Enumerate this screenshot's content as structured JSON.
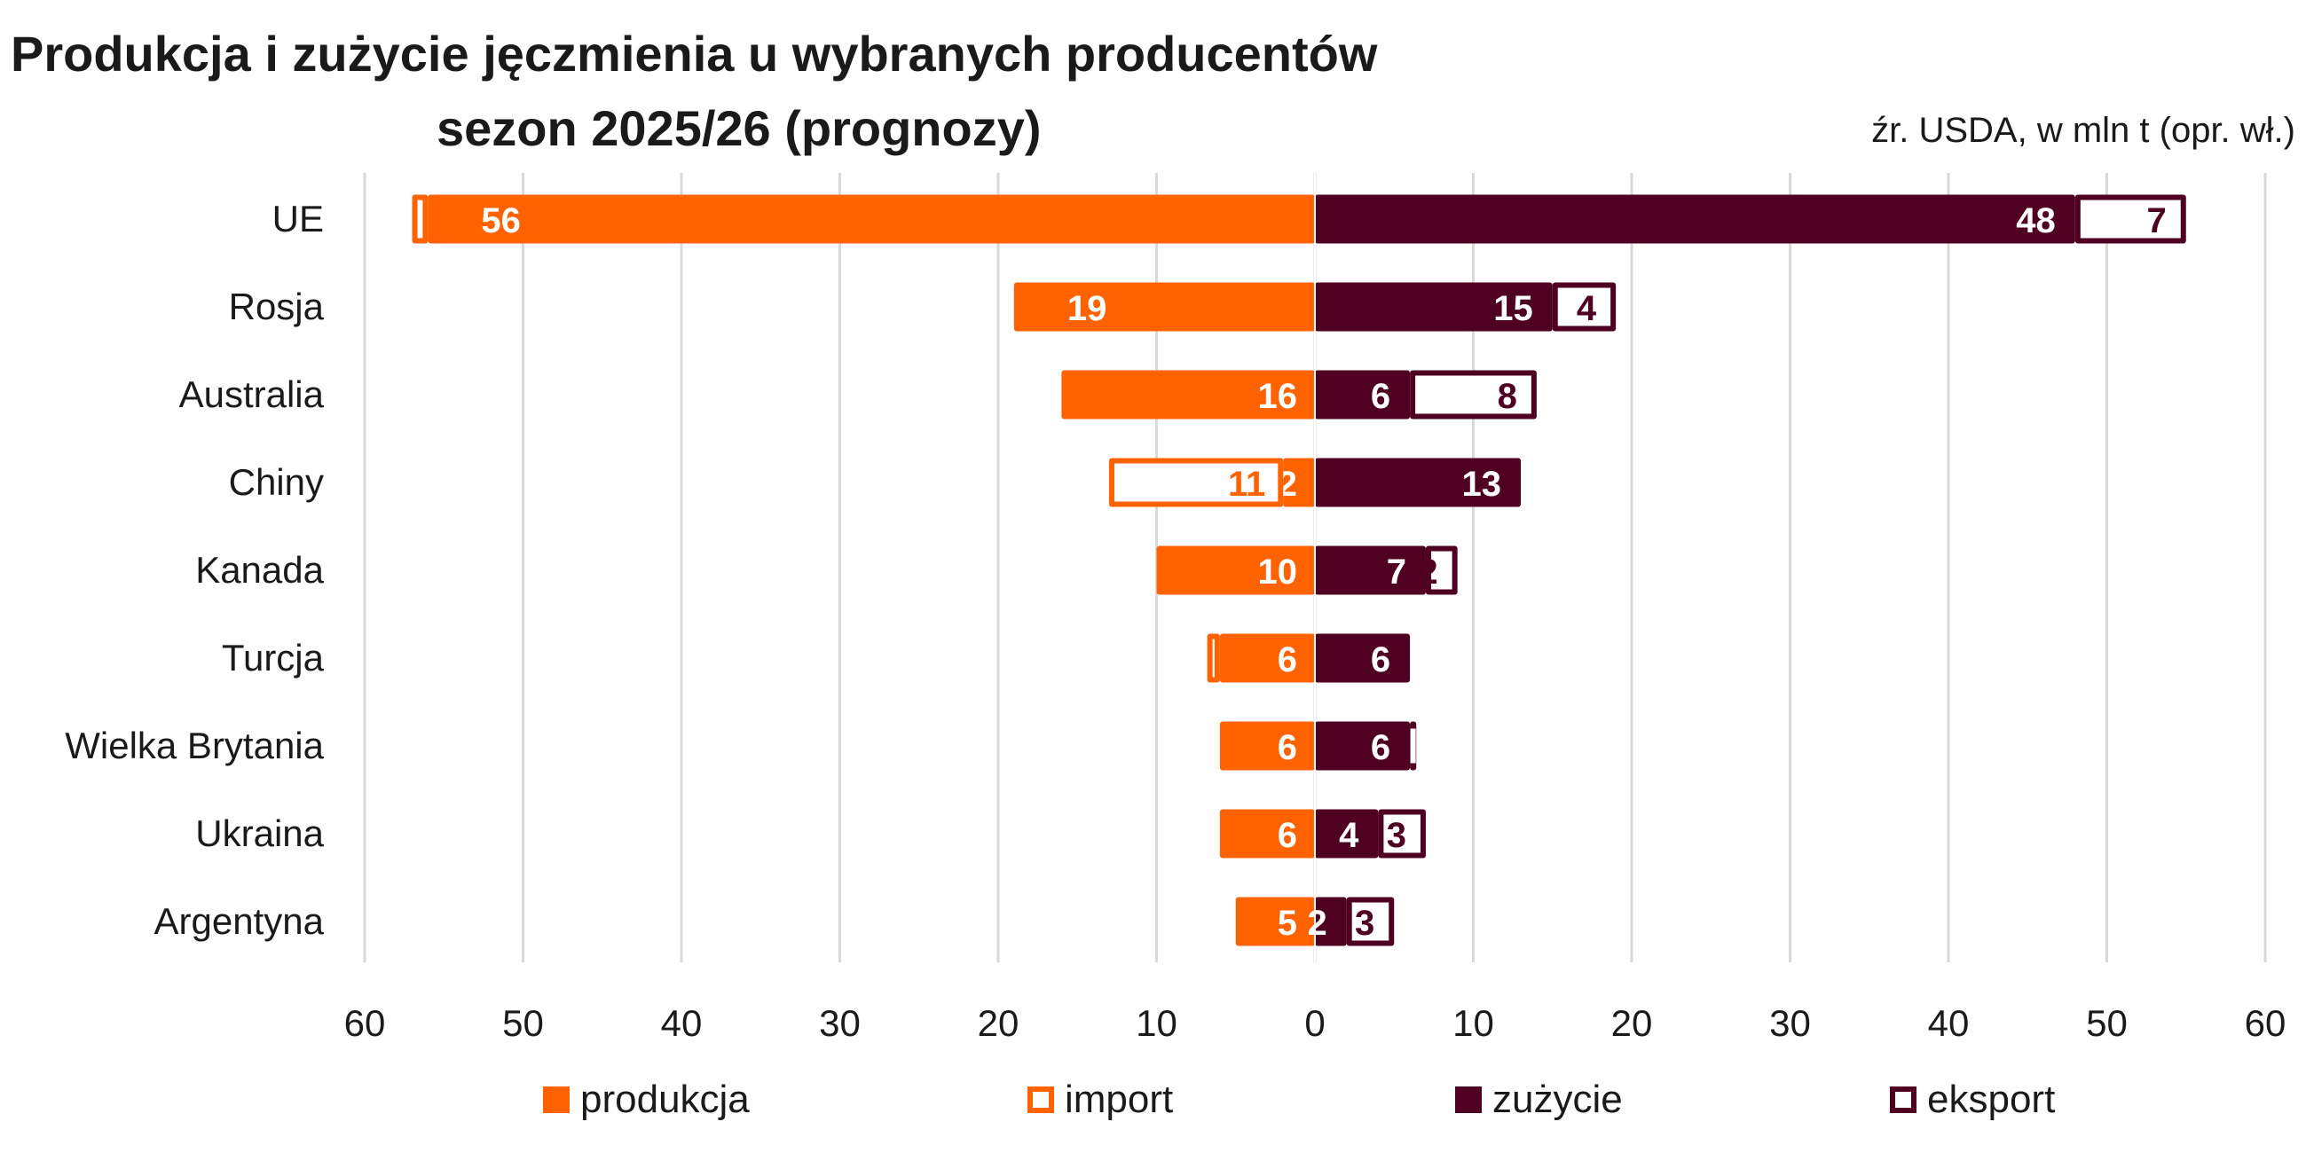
{
  "title_line1": "Produkcja i zużycie jęczmienia u wybranych producentów",
  "title_line2": "sezon 2025/26 (prognozy)",
  "source": "źr. USDA, w mln t (opr. wł.)",
  "colors": {
    "produkcja": "#FF6200",
    "import": "#FF6200",
    "zuzycie": "#4F0021",
    "eksport": "#4F0021"
  },
  "chart_data": {
    "type": "bar",
    "orientation": "horizontal-diverging-stacked",
    "categories": [
      "UE",
      "Rosja",
      "Australia",
      "Chiny",
      "Kanada",
      "Turcja",
      "Wielka Brytania",
      "Ukraina",
      "Argentyna"
    ],
    "series": [
      {
        "name": "produkcja",
        "side": "left",
        "fill": "solid",
        "values": [
          56,
          19,
          16,
          2,
          10,
          6,
          6,
          6,
          5
        ]
      },
      {
        "name": "import",
        "side": "left",
        "fill": "outline",
        "values": [
          1,
          0,
          0,
          11,
          0,
          0.8,
          0,
          0,
          0
        ]
      },
      {
        "name": "zużycie",
        "side": "right",
        "fill": "solid",
        "values": [
          48,
          15,
          6,
          13,
          7,
          6,
          6,
          4,
          2
        ]
      },
      {
        "name": "eksport",
        "side": "right",
        "fill": "outline",
        "values": [
          7,
          4,
          8,
          0,
          2,
          0,
          0.4,
          3,
          3
        ]
      }
    ],
    "x_ticks": [
      "60",
      "50",
      "40",
      "30",
      "20",
      "10",
      "0",
      "10",
      "20",
      "30",
      "40",
      "50",
      "60"
    ],
    "xlim": [
      -60,
      60
    ],
    "grid": true,
    "legend": "bottom"
  }
}
